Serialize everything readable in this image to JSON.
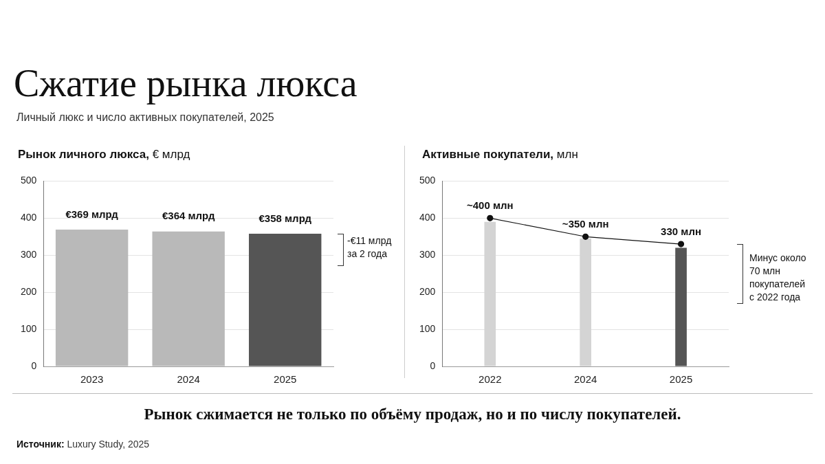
{
  "chart_data": [
    {
      "type": "other",
      "title": "Сжатие рынка люкса",
      "subtitle": "Личный люкс и число активных покупателей, 2025"
    },
    {
      "type": "bar",
      "title": "Рынок личного люкса, € млрд",
      "categories": [
        "2023",
        "2024",
        "2025"
      ],
      "values": [
        369,
        364,
        358
      ],
      "colors": [
        "#b9b9b9",
        "#b9b9b9",
        "#555555"
      ],
      "value_labels": [
        "€369 млрд",
        "€364 млрд",
        "€358 млрд"
      ],
      "ylim": [
        0,
        500
      ],
      "yticks": [
        0,
        100,
        200,
        300,
        400,
        500
      ],
      "grid": "y",
      "annotations": [
        "-€11 млрд\nза 2 года"
      ]
    },
    {
      "type": "bar",
      "title": "Активные покупатели, млн",
      "categories": [
        "2022",
        "2024",
        "2025"
      ],
      "series": [
        {
          "type": "bar",
          "colors": [
            "#d4d4d4",
            "#d4d4d4",
            "#555555"
          ],
          "values": [
            390,
            345,
            320
          ]
        },
        {
          "type": "line",
          "color": "#111111",
          "values": [
            400,
            350,
            330
          ],
          "value_labels": [
            "~400 млн",
            "~350 млн",
            "330 млн"
          ]
        }
      ],
      "marker": "circle",
      "ylim": [
        0,
        500
      ],
      "yticks": [
        0,
        100,
        200,
        300,
        400,
        500
      ],
      "grid": "y",
      "annotations": [
        "Минус около\n70 млн\nпокупателей\nс 2022 года"
      ]
    },
    {
      "type": "other",
      "annotations": [
        "Рынок сжимается не только по объёму продаж, но и по числу покупателей.",
        "Источник: Luxury Study, 2025"
      ]
    }
  ]
}
